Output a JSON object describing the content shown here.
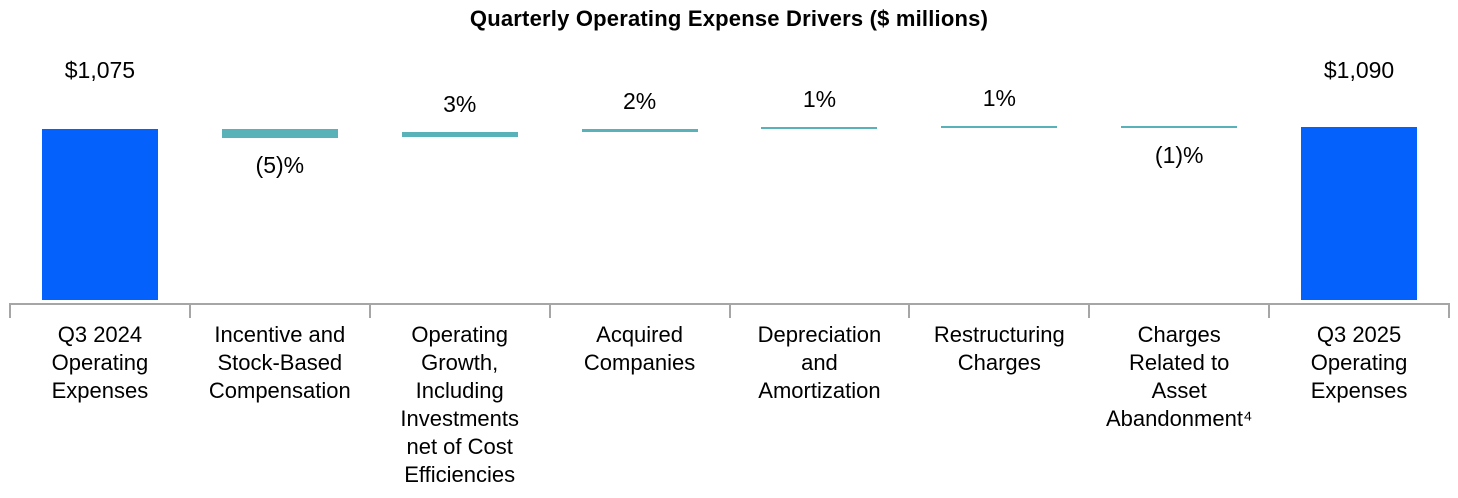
{
  "chart_data": {
    "type": "bar",
    "subtype": "waterfall",
    "title": "Quarterly Operating Expense Drivers ($ millions)",
    "columns": [
      {
        "label": "Q3 2024\nOperating\nExpenses",
        "role": "total",
        "value": 1075,
        "display": "$1,075"
      },
      {
        "label": "Incentive and\nStock-Based\nCompensation",
        "role": "delta",
        "pct": -5,
        "display": "(5)%"
      },
      {
        "label": "Operating\nGrowth,\nIncluding\nInvestments\nnet of Cost\nEfficiencies",
        "role": "delta",
        "pct": 3,
        "display": "3%"
      },
      {
        "label": "Acquired\nCompanies",
        "role": "delta",
        "pct": 2,
        "display": "2%"
      },
      {
        "label": "Depreciation\nand\nAmortization",
        "role": "delta",
        "pct": 1,
        "display": "1%"
      },
      {
        "label": "Restructuring\nCharges",
        "role": "delta",
        "pct": 1,
        "display": "1%"
      },
      {
        "label": "Charges\nRelated to\nAsset\nAbandonment⁴",
        "role": "delta",
        "pct": -1,
        "display": "(1)%"
      },
      {
        "label": "Q3 2025\nOperating\nExpenses",
        "role": "total",
        "value": 1090,
        "display": "$1,090"
      }
    ],
    "axis": {
      "gridlines": false,
      "baseline_visible": true,
      "tick_count": 9
    },
    "colors": {
      "total_bar": "#0561FB",
      "delta_bar": "#5AB2B9",
      "axis": "#A6A6A6",
      "text": "#000000"
    }
  }
}
